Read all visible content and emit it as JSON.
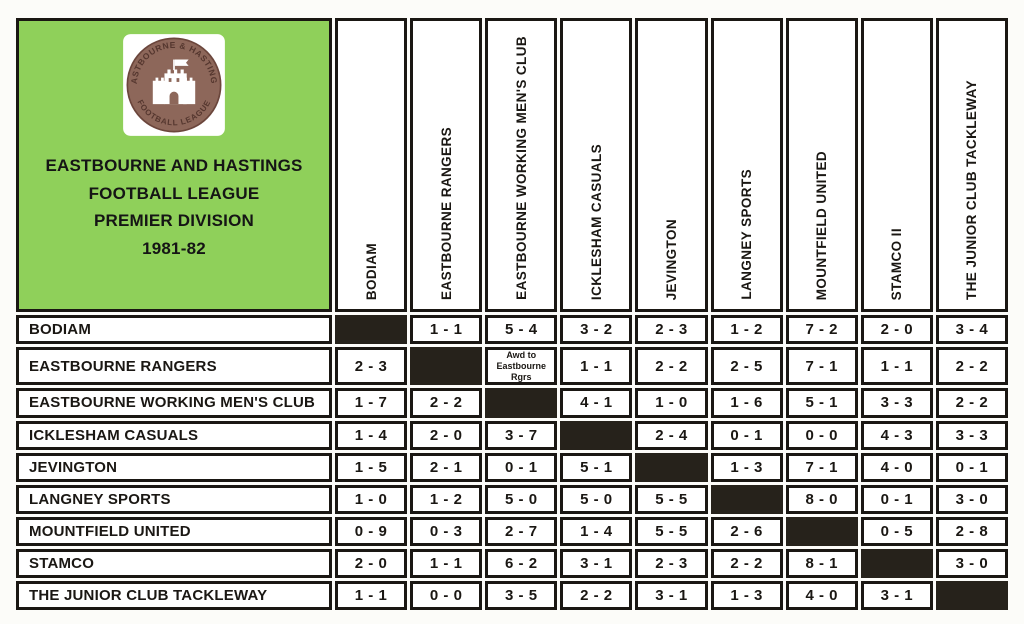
{
  "title": {
    "line1": "EASTBOURNE AND HASTINGS",
    "line2": "FOOTBALL LEAGUE",
    "line3": "PREMIER DIVISION",
    "line4": "1981-82"
  },
  "logo": {
    "top_text": "EASTBOURNE & HASTINGS",
    "bottom_text": "FOOTBALL  LEAGUE",
    "ring_color": "#8d675a",
    "text_color": "#54362e",
    "castle_color": "#ffffff"
  },
  "colors": {
    "panel_green": "#8fd05a",
    "diagonal_black": "#26221b",
    "border_ink": "#1a1713",
    "paper": "#fcfcf9"
  },
  "matrix": {
    "columns": [
      "BODIAM",
      "EASTBOURNE RANGERS",
      "EASTBOURNE WORKING MEN'S CLUB",
      "ICKLESHAM CASUALS",
      "JEVINGTON",
      "LANGNEY SPORTS",
      "MOUNTFIELD UNITED",
      "STAMCO II",
      "THE JUNIOR CLUB TACKLEWAY"
    ],
    "rows": [
      {
        "label": "BODIAM",
        "cells": [
          null,
          "1 - 1",
          "5 - 4",
          "3 - 2",
          "2 - 3",
          "1 - 2",
          "7 - 2",
          "2 - 0",
          "3 - 4"
        ]
      },
      {
        "label": "EASTBOURNE RANGERS",
        "cells": [
          "2 - 3",
          null,
          "Awd to\nEastbourne Rgrs",
          "1 - 1",
          "2 - 2",
          "2 - 5",
          "7 - 1",
          "1 - 1",
          "2 - 2"
        ]
      },
      {
        "label": "EASTBOURNE WORKING MEN'S CLUB",
        "cells": [
          "1 - 7",
          "2 - 2",
          null,
          "4 - 1",
          "1 - 0",
          "1 - 6",
          "5 - 1",
          "3 - 3",
          "2 - 2"
        ]
      },
      {
        "label": "ICKLESHAM CASUALS",
        "cells": [
          "1 - 4",
          "2 - 0",
          "3 - 7",
          null,
          "2 - 4",
          "0 - 1",
          "0 - 0",
          "4 - 3",
          "3 - 3"
        ]
      },
      {
        "label": "JEVINGTON",
        "cells": [
          "1 - 5",
          "2 - 1",
          "0 - 1",
          "5 - 1",
          null,
          "1 - 3",
          "7 - 1",
          "4 - 0",
          "0 - 1"
        ]
      },
      {
        "label": "LANGNEY SPORTS",
        "cells": [
          "1 - 0",
          "1 - 2",
          "5 - 0",
          "5 - 0",
          "5 - 5",
          null,
          "8 - 0",
          "0 - 1",
          "3 - 0"
        ]
      },
      {
        "label": "MOUNTFIELD UNITED",
        "cells": [
          "0 - 9",
          "0 - 3",
          "2 - 7",
          "1 - 4",
          "5 - 5",
          "2 - 6",
          null,
          "0 - 5",
          "2 - 8"
        ]
      },
      {
        "label": "STAMCO",
        "cells": [
          "2 - 0",
          "1 - 1",
          "6 - 2",
          "3 - 1",
          "2 - 3",
          "2 - 2",
          "8 - 1",
          null,
          "3 - 0"
        ]
      },
      {
        "label": "THE JUNIOR CLUB TACKLEWAY",
        "cells": [
          "1 - 1",
          "0 - 0",
          "3 - 5",
          "2 - 2",
          "3 - 1",
          "1 - 3",
          "4 - 0",
          "3 - 1",
          null
        ]
      }
    ]
  }
}
